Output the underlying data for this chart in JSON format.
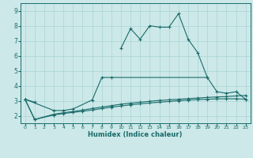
{
  "xlabel": "Humidex (Indice chaleur)",
  "xlim": [
    -0.5,
    23.5
  ],
  "ylim": [
    1.5,
    9.5
  ],
  "yticks": [
    2,
    3,
    4,
    5,
    6,
    7,
    8,
    9
  ],
  "ytick_labels": [
    "2",
    "3",
    "4",
    "5",
    "6",
    "7",
    "8",
    "9"
  ],
  "xticks": [
    0,
    1,
    2,
    3,
    4,
    5,
    6,
    7,
    8,
    9,
    10,
    11,
    12,
    13,
    14,
    15,
    16,
    17,
    18,
    19,
    20,
    21,
    22,
    23
  ],
  "bg_color": "#cce8e8",
  "grid_color": "#aad4d4",
  "line_color": "#1a6b6b",
  "line1_x": [
    0,
    1,
    2,
    3,
    4,
    5,
    6,
    7,
    8,
    9,
    10,
    11,
    12,
    13,
    14,
    15,
    16,
    17,
    18,
    19,
    20,
    21,
    22,
    23
  ],
  "line1_y": [
    3.1,
    2.9,
    null,
    null,
    null,
    null,
    null,
    null,
    null,
    null,
    6.5,
    7.8,
    7.1,
    8.0,
    7.9,
    7.9,
    8.8,
    7.1,
    6.2,
    4.55,
    3.6,
    3.5,
    3.6,
    3.1
  ],
  "line2_x": [
    0,
    3,
    4,
    5,
    7,
    8,
    9,
    19
  ],
  "line2_y": [
    3.1,
    2.35,
    2.35,
    2.45,
    3.05,
    4.55,
    4.55,
    4.55
  ],
  "line3_x": [
    0,
    1,
    3,
    4,
    5,
    6,
    7,
    8,
    9,
    10,
    11,
    12,
    13,
    14,
    15,
    16,
    17,
    18,
    19,
    20,
    21,
    22,
    23
  ],
  "line3_y": [
    3.1,
    1.75,
    2.05,
    2.15,
    2.22,
    2.3,
    2.38,
    2.48,
    2.57,
    2.65,
    2.73,
    2.79,
    2.85,
    2.9,
    2.95,
    3.0,
    3.04,
    3.08,
    3.1,
    3.12,
    3.13,
    3.13,
    3.1
  ],
  "line4_x": [
    0,
    1,
    3,
    4,
    5,
    6,
    7,
    8,
    9,
    10,
    11,
    12,
    13,
    14,
    15,
    16,
    17,
    18,
    19,
    20,
    21,
    22,
    23
  ],
  "line4_y": [
    3.1,
    1.75,
    2.1,
    2.2,
    2.28,
    2.38,
    2.48,
    2.58,
    2.67,
    2.77,
    2.84,
    2.9,
    2.96,
    3.02,
    3.06,
    3.1,
    3.14,
    3.18,
    3.22,
    3.25,
    3.28,
    3.32,
    3.35
  ]
}
